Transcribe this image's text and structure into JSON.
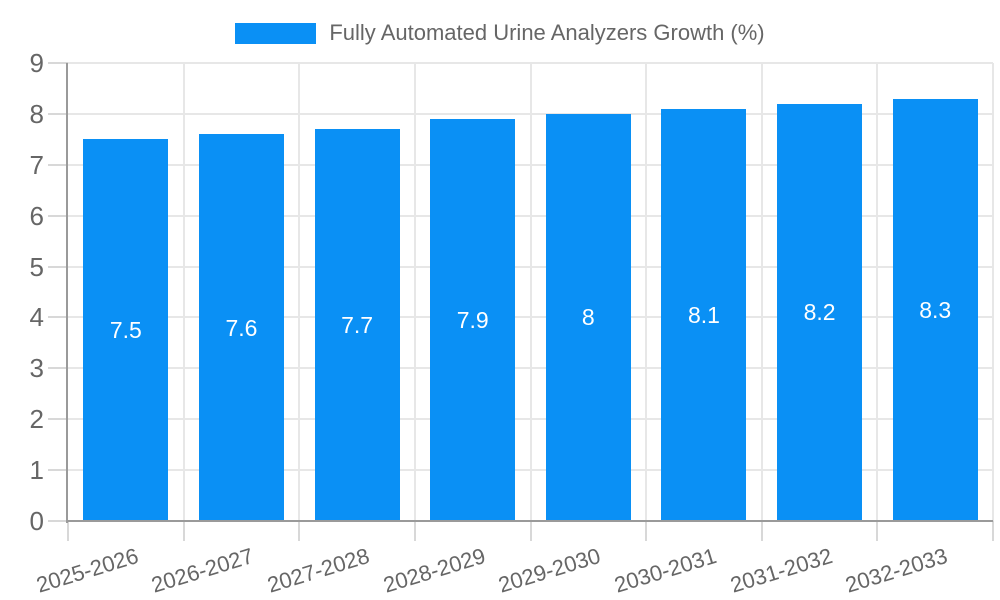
{
  "legend": {
    "label": "Fully Automated Urine Analyzers Growth (%)"
  },
  "colors": {
    "bar": "#0a90f5",
    "value_label": "#ffffff",
    "axis_text": "#666666",
    "gridline": "#e7e7e7",
    "axis_line": "#9a9a9a",
    "tick": "#d8d8d8"
  },
  "chart_data": {
    "type": "bar",
    "title": "",
    "categories": [
      "2025-2026",
      "2026-2027",
      "2027-2028",
      "2028-2029",
      "2029-2030",
      "2030-2031",
      "2031-2032",
      "2032-2033"
    ],
    "values": [
      7.5,
      7.6,
      7.7,
      7.9,
      8,
      8.1,
      8.2,
      8.3
    ],
    "value_labels": [
      "7.5",
      "7.6",
      "7.7",
      "7.9",
      "8",
      "8.1",
      "8.2",
      "8.3"
    ],
    "series_name": "Fully Automated Urine Analyzers Growth (%)",
    "xlabel": "",
    "ylabel": "",
    "ylim": [
      0,
      9
    ],
    "ytick_step": 1,
    "yticks": [
      0,
      1,
      2,
      3,
      4,
      5,
      6,
      7,
      8,
      9
    ],
    "grid": true,
    "legend_position": "top"
  }
}
